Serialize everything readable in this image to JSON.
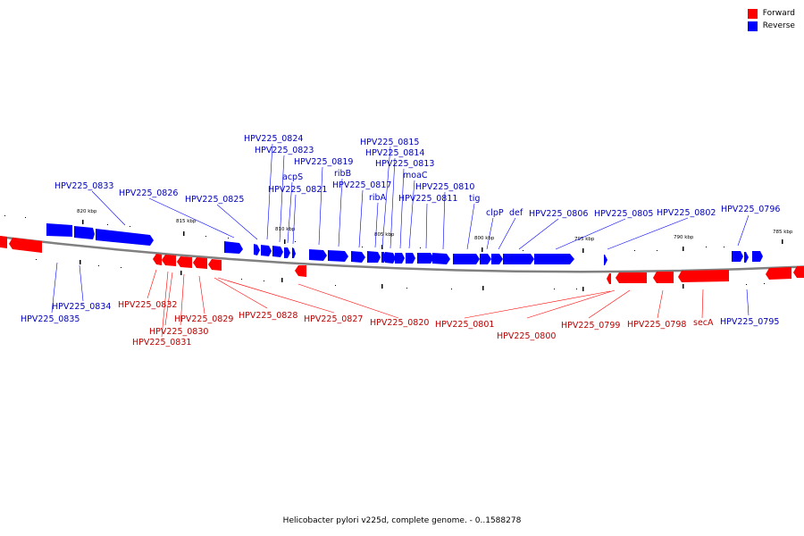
{
  "legend": [
    {
      "label": "Forward",
      "color": "#ff0000"
    },
    {
      "label": "Reverse",
      "color": "#0000ff"
    }
  ],
  "caption": "Helicobacter pylori v225d, complete genome. - 0..1588278",
  "colors": {
    "forward": "#ff0000",
    "reverse": "#0000ff",
    "axis": "#808080"
  },
  "ticks": [
    "820 kbp",
    "815 kbp",
    "810 kbp",
    "805 kbp",
    "800 kbp",
    "795 kbp",
    "790 kbp",
    "785 kbp"
  ],
  "genes": {
    "reverse": [
      "HPV225_0835",
      "HPV225_0834",
      "HPV225_0833",
      "HPV225_0826",
      "HPV225_0825",
      "HPV225_0824",
      "HPV225_0823",
      "acpS",
      "HPV225_0821",
      "HPV225_0819",
      "ribB",
      "HPV225_0817",
      "ribA",
      "HPV225_0815",
      "HPV225_0814",
      "HPV225_0813",
      "moaC",
      "HPV225_0811",
      "HPV225_0810",
      "tig",
      "clpP",
      "def",
      "HPV225_0806",
      "HPV225_0805",
      "HPV225_0802",
      "HPV225_0796",
      "HPV225_0795"
    ],
    "forward": [
      "HPV225_0832",
      "HPV225_0831",
      "HPV225_0830",
      "HPV225_0829",
      "HPV225_0828",
      "HPV225_0827",
      "HPV225_0820",
      "HPV225_0801",
      "HPV225_0800",
      "HPV225_0799",
      "HPV225_0798",
      "secA"
    ]
  }
}
